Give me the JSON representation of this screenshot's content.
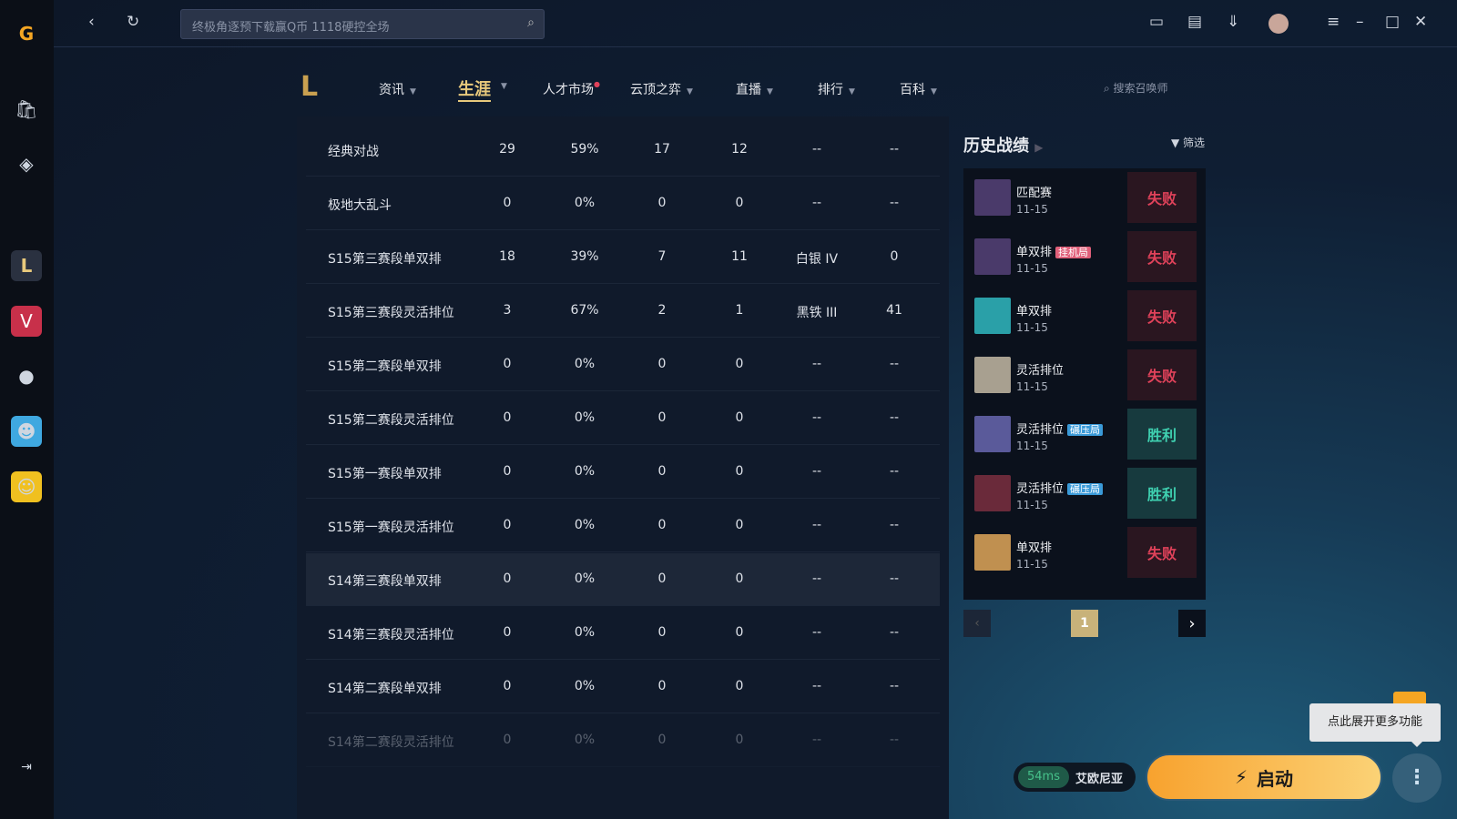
{
  "app": {
    "search_placeholder": "终极角逐预下载赢Q币 1118硬控全场"
  },
  "nav": {
    "items": [
      {
        "label": "资讯"
      },
      {
        "label": "生涯",
        "active": true
      },
      {
        "label": "人才市场"
      },
      {
        "label": "云顶之弈"
      },
      {
        "label": "直播"
      },
      {
        "label": "排行"
      },
      {
        "label": "百科"
      }
    ],
    "search_placeholder": "搜索召唤师"
  },
  "stats": {
    "rows": [
      [
        "经典对战",
        "29",
        "59%",
        "17",
        "12",
        "--",
        "--"
      ],
      [
        "极地大乱斗",
        "0",
        "0%",
        "0",
        "0",
        "--",
        "--"
      ],
      [
        "S15第三赛段单双排",
        "18",
        "39%",
        "7",
        "11",
        "白银 IV",
        "0"
      ],
      [
        "S15第三赛段灵活排位",
        "3",
        "67%",
        "2",
        "1",
        "黑铁 III",
        "41"
      ],
      [
        "S15第二赛段单双排",
        "0",
        "0%",
        "0",
        "0",
        "--",
        "--"
      ],
      [
        "S15第二赛段灵活排位",
        "0",
        "0%",
        "0",
        "0",
        "--",
        "--"
      ],
      [
        "S15第一赛段单双排",
        "0",
        "0%",
        "0",
        "0",
        "--",
        "--"
      ],
      [
        "S15第一赛段灵活排位",
        "0",
        "0%",
        "0",
        "0",
        "--",
        "--"
      ],
      [
        "S14第三赛段单双排",
        "0",
        "0%",
        "0",
        "0",
        "--",
        "--"
      ],
      [
        "S14第三赛段灵活排位",
        "0",
        "0%",
        "0",
        "0",
        "--",
        "--"
      ],
      [
        "S14第二赛段单双排",
        "0",
        "0%",
        "0",
        "0",
        "--",
        "--"
      ],
      [
        "S14第二赛段灵活排位",
        "0",
        "0%",
        "0",
        "0",
        "--",
        "--"
      ]
    ]
  },
  "history": {
    "title": "历史战绩",
    "filter": "筛选",
    "matches": [
      {
        "mode": "匹配赛",
        "tag": "",
        "date": "11-15",
        "result": "失败"
      },
      {
        "mode": "单双排",
        "tag": "挂机局",
        "date": "11-15",
        "result": "失败"
      },
      {
        "mode": "单双排",
        "tag": "",
        "date": "11-15",
        "result": "失败"
      },
      {
        "mode": "灵活排位",
        "tag": "",
        "date": "11-15",
        "result": "失败"
      },
      {
        "mode": "灵活排位",
        "tag": "碾压局",
        "date": "11-15",
        "result": "胜利"
      },
      {
        "mode": "灵活排位",
        "tag": "碾压局",
        "date": "11-15",
        "result": "胜利"
      },
      {
        "mode": "单双排",
        "tag": "",
        "date": "11-15",
        "result": "失败"
      }
    ],
    "page": "1"
  },
  "launch": {
    "ping": "54ms",
    "region": "艾欧尼亚",
    "start": "启动",
    "tooltip": "点此展开更多功能"
  },
  "colors": {
    "win": "#3fd0b0",
    "lose": "#e0425a",
    "accent": "#e8c97c"
  }
}
